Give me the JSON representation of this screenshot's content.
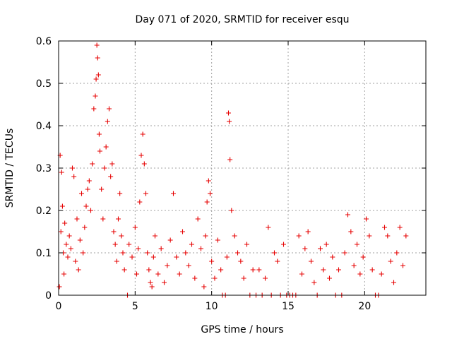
{
  "chart_data": {
    "type": "scatter",
    "title": "Day 071 of 2020, SRMTID for receiver esqu",
    "xlabel": "GPS time / hours",
    "ylabel": "SRMTID / TECUs",
    "xlim": [
      0,
      24
    ],
    "ylim": [
      0,
      0.6
    ],
    "xticks": [
      0,
      5,
      10,
      15,
      20
    ],
    "yticks": [
      0,
      0.1,
      0.2,
      0.3,
      0.4,
      0.5,
      0.6
    ],
    "xtick_labels": [
      "0",
      "5",
      "10",
      "15",
      "20"
    ],
    "ytick_labels": [
      "0",
      "0.1",
      "0.2",
      "0.3",
      "0.4",
      "0.5",
      "0.6"
    ],
    "grid": true,
    "marker": "+",
    "color": "#e60000",
    "series": [
      {
        "name": "SRMTID",
        "points": [
          [
            0.05,
            0.02
          ],
          [
            0.1,
            0.33
          ],
          [
            0.15,
            0.15
          ],
          [
            0.2,
            0.29
          ],
          [
            0.25,
            0.21
          ],
          [
            0.3,
            0.1
          ],
          [
            0.35,
            0.05
          ],
          [
            0.4,
            0.17
          ],
          [
            0.5,
            0.12
          ],
          [
            0.6,
            0.09
          ],
          [
            0.7,
            0.14
          ],
          [
            0.8,
            0.11
          ],
          [
            0.9,
            0.3
          ],
          [
            1.0,
            0.28
          ],
          [
            1.1,
            0.08
          ],
          [
            1.2,
            0.18
          ],
          [
            1.3,
            0.06
          ],
          [
            1.4,
            0.13
          ],
          [
            1.5,
            0.24
          ],
          [
            1.6,
            0.1
          ],
          [
            1.7,
            0.16
          ],
          [
            1.8,
            0.21
          ],
          [
            1.9,
            0.25
          ],
          [
            2.0,
            0.27
          ],
          [
            2.1,
            0.2
          ],
          [
            2.2,
            0.31
          ],
          [
            2.3,
            0.44
          ],
          [
            2.4,
            0.47
          ],
          [
            2.45,
            0.51
          ],
          [
            2.5,
            0.59
          ],
          [
            2.55,
            0.56
          ],
          [
            2.6,
            0.52
          ],
          [
            2.65,
            0.38
          ],
          [
            2.7,
            0.34
          ],
          [
            2.8,
            0.25
          ],
          [
            2.9,
            0.18
          ],
          [
            3.0,
            0.3
          ],
          [
            3.1,
            0.35
          ],
          [
            3.2,
            0.41
          ],
          [
            3.3,
            0.44
          ],
          [
            3.4,
            0.28
          ],
          [
            3.5,
            0.31
          ],
          [
            3.6,
            0.15
          ],
          [
            3.7,
            0.12
          ],
          [
            3.8,
            0.08
          ],
          [
            3.9,
            0.18
          ],
          [
            4.0,
            0.24
          ],
          [
            4.1,
            0.14
          ],
          [
            4.2,
            0.1
          ],
          [
            4.3,
            0.06
          ],
          [
            4.5,
            0.0
          ],
          [
            4.6,
            0.12
          ],
          [
            4.8,
            0.09
          ],
          [
            5.0,
            0.16
          ],
          [
            5.1,
            0.05
          ],
          [
            5.2,
            0.11
          ],
          [
            5.3,
            0.22
          ],
          [
            5.4,
            0.33
          ],
          [
            5.5,
            0.38
          ],
          [
            5.6,
            0.31
          ],
          [
            5.7,
            0.24
          ],
          [
            5.8,
            0.1
          ],
          [
            5.9,
            0.06
          ],
          [
            6.0,
            0.03
          ],
          [
            6.1,
            0.02
          ],
          [
            6.2,
            0.09
          ],
          [
            6.3,
            0.14
          ],
          [
            6.5,
            0.05
          ],
          [
            6.7,
            0.11
          ],
          [
            6.9,
            0.03
          ],
          [
            7.1,
            0.07
          ],
          [
            7.3,
            0.13
          ],
          [
            7.5,
            0.24
          ],
          [
            7.7,
            0.09
          ],
          [
            7.9,
            0.05
          ],
          [
            8.1,
            0.15
          ],
          [
            8.3,
            0.1
          ],
          [
            8.5,
            0.07
          ],
          [
            8.7,
            0.12
          ],
          [
            8.9,
            0.04
          ],
          [
            9.1,
            0.18
          ],
          [
            9.3,
            0.11
          ],
          [
            9.5,
            0.02
          ],
          [
            9.6,
            0.14
          ],
          [
            9.7,
            0.22
          ],
          [
            9.8,
            0.27
          ],
          [
            9.9,
            0.24
          ],
          [
            10.0,
            0.08
          ],
          [
            10.2,
            0.04
          ],
          [
            10.4,
            0.13
          ],
          [
            10.6,
            0.06
          ],
          [
            10.7,
            0.0
          ],
          [
            10.9,
            0.0
          ],
          [
            11.0,
            0.09
          ],
          [
            11.1,
            0.43
          ],
          [
            11.15,
            0.41
          ],
          [
            11.2,
            0.32
          ],
          [
            11.3,
            0.2
          ],
          [
            11.5,
            0.14
          ],
          [
            11.7,
            0.1
          ],
          [
            11.9,
            0.08
          ],
          [
            12.1,
            0.04
          ],
          [
            12.3,
            0.12
          ],
          [
            12.5,
            0.0
          ],
          [
            12.7,
            0.06
          ],
          [
            12.9,
            0.0
          ],
          [
            13.1,
            0.06
          ],
          [
            13.3,
            0.0
          ],
          [
            13.5,
            0.04
          ],
          [
            13.7,
            0.16
          ],
          [
            13.9,
            0.0
          ],
          [
            14.1,
            0.1
          ],
          [
            14.3,
            0.08
          ],
          [
            14.5,
            0.0
          ],
          [
            14.7,
            0.12
          ],
          [
            14.9,
            0.0
          ],
          [
            15.1,
            0.0
          ],
          [
            15.3,
            0.0
          ],
          [
            15.5,
            0.0
          ],
          [
            15.7,
            0.14
          ],
          [
            15.9,
            0.05
          ],
          [
            16.1,
            0.11
          ],
          [
            16.3,
            0.15
          ],
          [
            16.5,
            0.08
          ],
          [
            16.7,
            0.03
          ],
          [
            16.9,
            0.0
          ],
          [
            17.1,
            0.11
          ],
          [
            17.3,
            0.06
          ],
          [
            17.5,
            0.12
          ],
          [
            17.7,
            0.04
          ],
          [
            17.9,
            0.09
          ],
          [
            18.1,
            0.0
          ],
          [
            18.3,
            0.06
          ],
          [
            18.5,
            0.0
          ],
          [
            18.7,
            0.1
          ],
          [
            18.9,
            0.19
          ],
          [
            19.1,
            0.15
          ],
          [
            19.3,
            0.07
          ],
          [
            19.5,
            0.12
          ],
          [
            19.7,
            0.05
          ],
          [
            19.9,
            0.09
          ],
          [
            20.1,
            0.18
          ],
          [
            20.3,
            0.14
          ],
          [
            20.5,
            0.06
          ],
          [
            20.7,
            0.0
          ],
          [
            20.9,
            0.0
          ],
          [
            21.1,
            0.05
          ],
          [
            21.3,
            0.16
          ],
          [
            21.5,
            0.14
          ],
          [
            21.7,
            0.08
          ],
          [
            21.9,
            0.03
          ],
          [
            22.1,
            0.1
          ],
          [
            22.3,
            0.16
          ],
          [
            22.5,
            0.07
          ],
          [
            22.7,
            0.14
          ]
        ]
      }
    ]
  }
}
